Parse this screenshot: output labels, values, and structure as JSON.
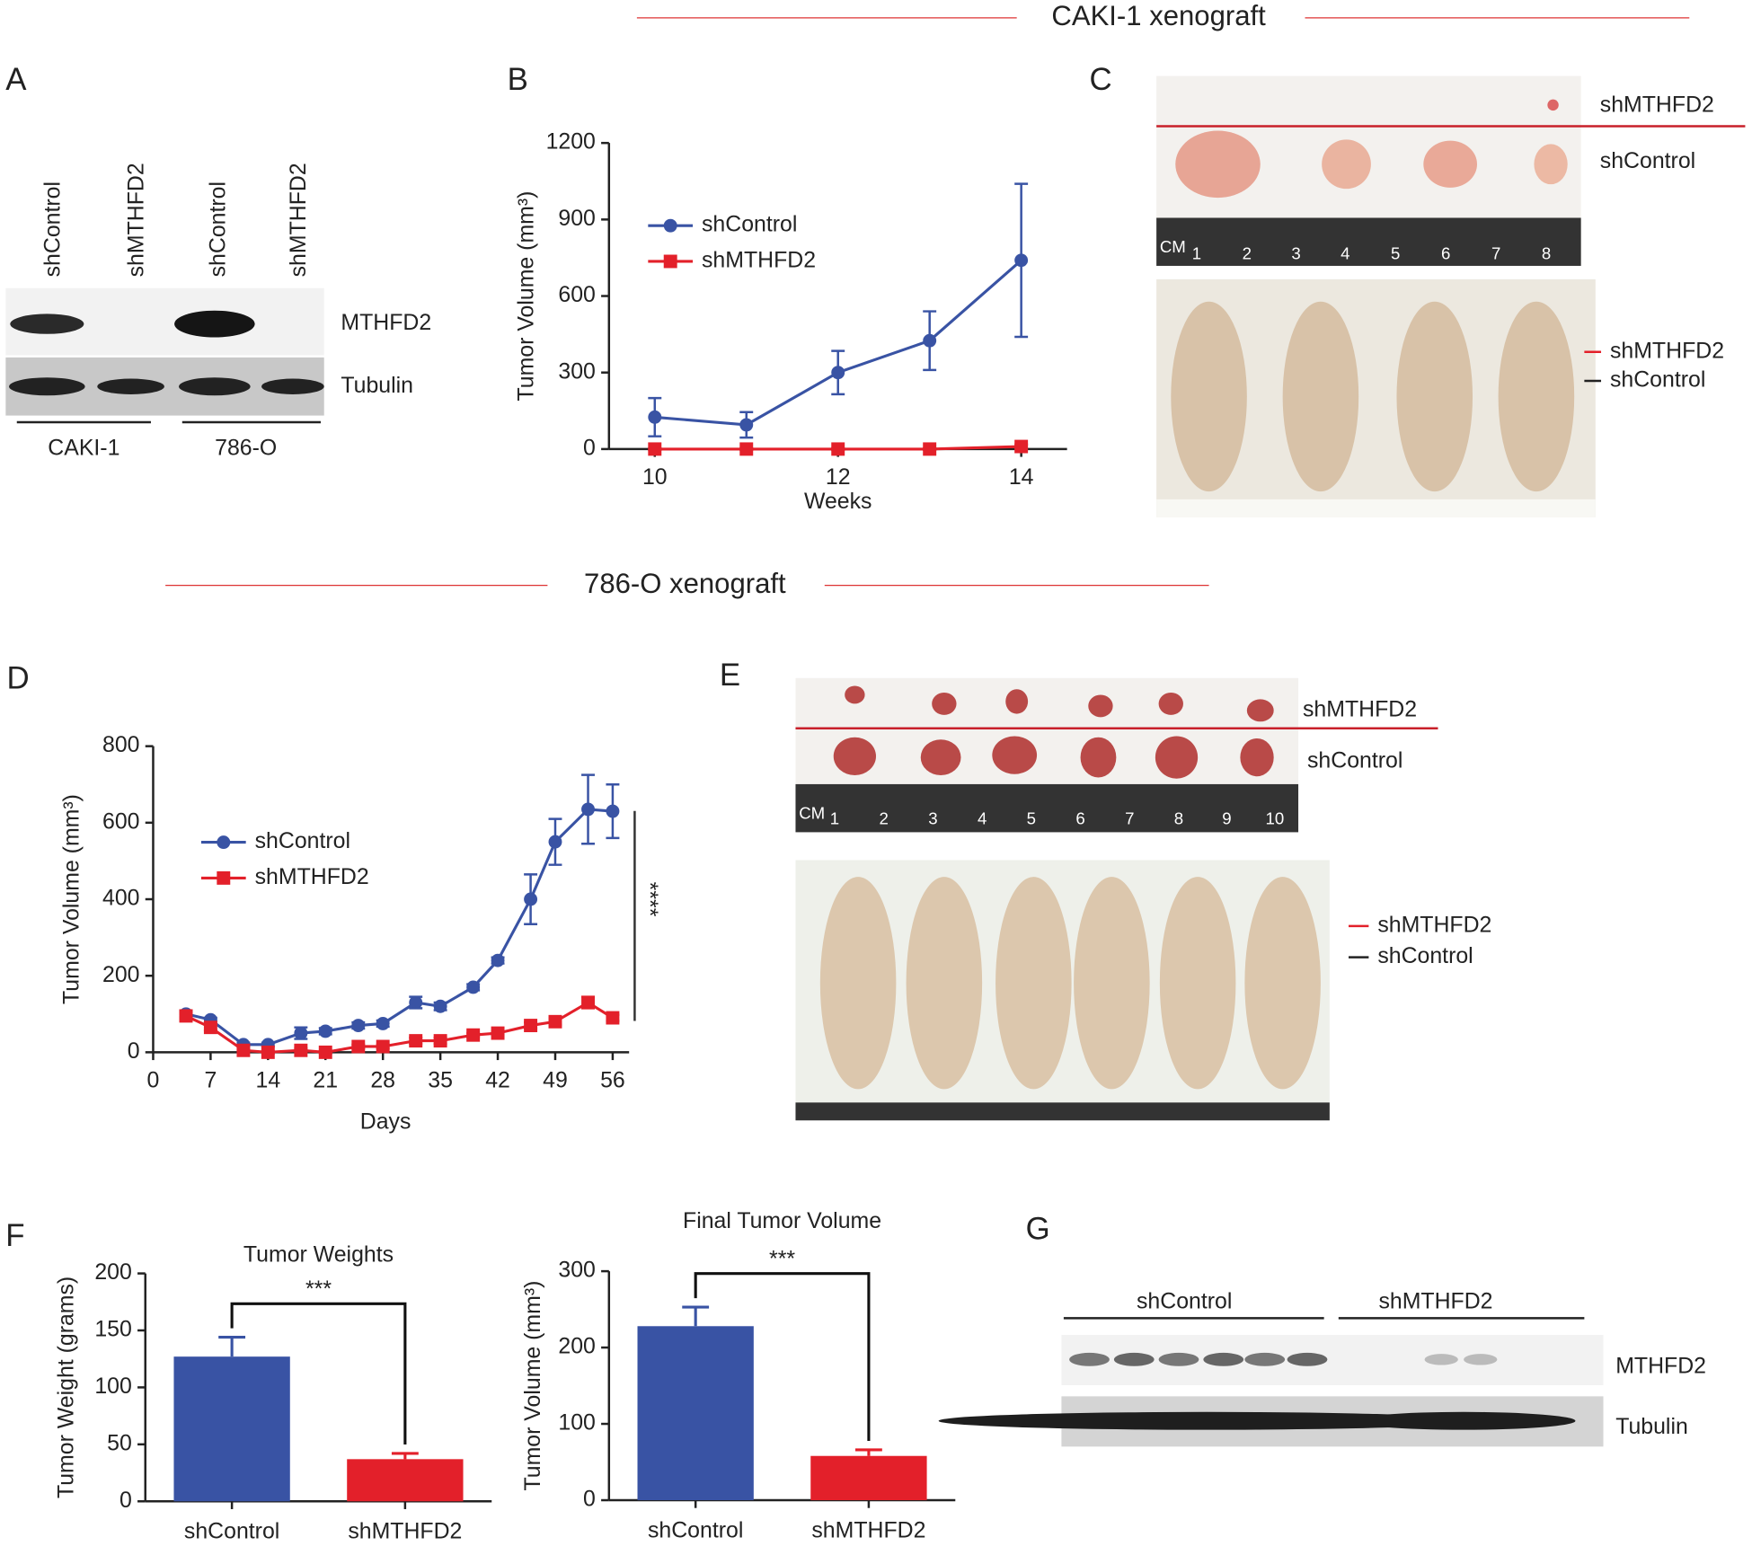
{
  "headers": [
    "CAKI-1 xenograft",
    "786-O xenograft"
  ],
  "panels": [
    "A",
    "B",
    "C",
    "D",
    "E",
    "F",
    "G"
  ],
  "blot_a": {
    "lanes": [
      "shControl",
      "shMTHFD2",
      "shControl",
      "shMTHFD2"
    ],
    "rows": [
      "MTHFD2",
      "Tubulin"
    ],
    "groups": [
      "CAKI-1",
      "786-O"
    ]
  },
  "photo_c": {
    "labels": [
      "shMTHFD2",
      "shControl"
    ],
    "ruler": [
      "CM",
      "1",
      "2",
      "3",
      "4",
      "5",
      "6",
      "7",
      "8"
    ],
    "legend": [
      "shMTHFD2",
      "shControl"
    ]
  },
  "photo_e": {
    "labels": [
      "shMTHFD2",
      "shControl"
    ],
    "ruler": [
      "CM",
      "1",
      "2",
      "3",
      "4",
      "5",
      "6",
      "7",
      "8",
      "9",
      "10"
    ],
    "legend": [
      "shMTHFD2",
      "shControl"
    ]
  },
  "blot_g": {
    "groups": [
      "shControl",
      "shMTHFD2"
    ],
    "rows": [
      "MTHFD2",
      "Tubulin"
    ]
  },
  "chart_data": [
    {
      "type": "line",
      "xlabel": "Weeks",
      "ylabel": "Tumor Volume (mm³)",
      "x": [
        10,
        11,
        12,
        13,
        14
      ],
      "xlim": [
        9.5,
        14.5
      ],
      "xticks": [
        10,
        12,
        14
      ],
      "ylim": [
        0,
        1200
      ],
      "yticks": [
        0,
        300,
        600,
        900,
        1200
      ],
      "series": [
        {
          "name": "shControl",
          "color": "#3953a4",
          "marker": "circle",
          "values": [
            125,
            95,
            300,
            425,
            740
          ],
          "errors": [
            75,
            50,
            85,
            115,
            300
          ]
        },
        {
          "name": "shMTHFD2",
          "color": "#e3202a",
          "marker": "square",
          "values": [
            0,
            0,
            0,
            0,
            10
          ],
          "errors": [
            3,
            3,
            3,
            3,
            8
          ]
        }
      ]
    },
    {
      "type": "line",
      "xlabel": "Days",
      "ylabel": "Tumor Volume (mm³)",
      "annotation": "****",
      "x": [
        4,
        7,
        11,
        14,
        18,
        21,
        25,
        28,
        32,
        35,
        39,
        42,
        46,
        49,
        53,
        56
      ],
      "xlim": [
        0,
        58
      ],
      "xticks": [
        0,
        7,
        14,
        21,
        28,
        35,
        42,
        49,
        56
      ],
      "ylim": [
        0,
        800
      ],
      "yticks": [
        0,
        200,
        400,
        600,
        800
      ],
      "series": [
        {
          "name": "shControl",
          "color": "#3953a4",
          "marker": "circle",
          "values": [
            100,
            85,
            20,
            20,
            50,
            55,
            70,
            75,
            130,
            120,
            170,
            240,
            400,
            550,
            635,
            630
          ],
          "errors": [
            8,
            5,
            5,
            5,
            15,
            8,
            8,
            8,
            15,
            10,
            8,
            8,
            65,
            60,
            90,
            70
          ]
        },
        {
          "name": "shMTHFD2",
          "color": "#e3202a",
          "marker": "square",
          "values": [
            95,
            65,
            5,
            0,
            5,
            0,
            15,
            15,
            30,
            30,
            45,
            50,
            70,
            80,
            130,
            90
          ],
          "errors": [
            8,
            8,
            3,
            3,
            5,
            3,
            5,
            5,
            8,
            8,
            5,
            5,
            8,
            8,
            15,
            8
          ]
        }
      ]
    },
    {
      "type": "bar",
      "title": "Tumor Weights",
      "ylabel": "Tumor Weight (grams)",
      "annotation": "***",
      "categories": [
        "shControl",
        "shMTHFD2"
      ],
      "values": [
        127,
        37
      ],
      "errors": [
        17,
        5
      ],
      "colors": [
        "#3953a4",
        "#e3202a"
      ],
      "ylim": [
        0,
        200
      ],
      "yticks": [
        0,
        50,
        100,
        150,
        200
      ]
    },
    {
      "type": "bar",
      "title": "Final Tumor Volume",
      "ylabel": "Tumor Volume (mm³)",
      "annotation": "***",
      "categories": [
        "shControl",
        "shMTHFD2"
      ],
      "values": [
        228,
        58
      ],
      "errors": [
        25,
        8
      ],
      "colors": [
        "#3953a4",
        "#e3202a"
      ],
      "ylim": [
        0,
        300
      ],
      "yticks": [
        0,
        100,
        200,
        300
      ]
    }
  ]
}
